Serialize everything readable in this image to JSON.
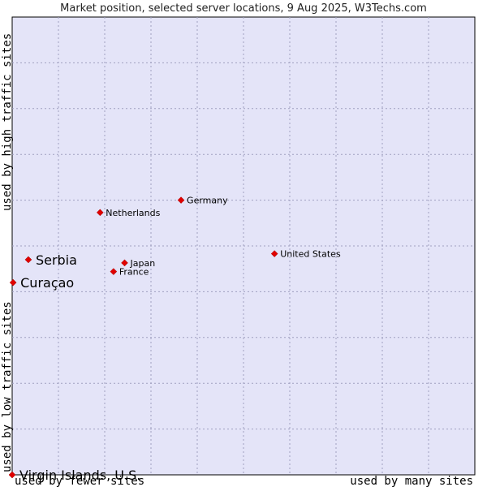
{
  "chart_data": {
    "type": "scatter",
    "title": "Market position, selected server locations, 9 Aug 2025, W3Techs.com",
    "xlabel_left": "used by fewer sites",
    "xlabel_right": "used by many sites",
    "ylabel_bottom": "used by low traffic sites",
    "ylabel_top": "used by high traffic sites",
    "xlim": [
      0,
      100
    ],
    "ylim": [
      0,
      100
    ],
    "grid": true,
    "point_color": "#e00000",
    "plot_background": "#e4e4f8",
    "points": [
      {
        "name": "Serbia",
        "x": 3.5,
        "y": 47,
        "highlight": true
      },
      {
        "name": "Curaçao",
        "x": 0.2,
        "y": 42,
        "highlight": true
      },
      {
        "name": "Virgin Islands, U.S.",
        "x": 0,
        "y": 0,
        "highlight": true
      },
      {
        "name": "Netherlands",
        "x": 19,
        "y": 57.3,
        "highlight": false
      },
      {
        "name": "Germany",
        "x": 36.5,
        "y": 60,
        "highlight": false
      },
      {
        "name": "Japan",
        "x": 24.3,
        "y": 46.3,
        "highlight": false
      },
      {
        "name": "France",
        "x": 21.9,
        "y": 44.4,
        "highlight": false
      },
      {
        "name": "United States",
        "x": 56.7,
        "y": 48.3,
        "highlight": false
      }
    ]
  }
}
